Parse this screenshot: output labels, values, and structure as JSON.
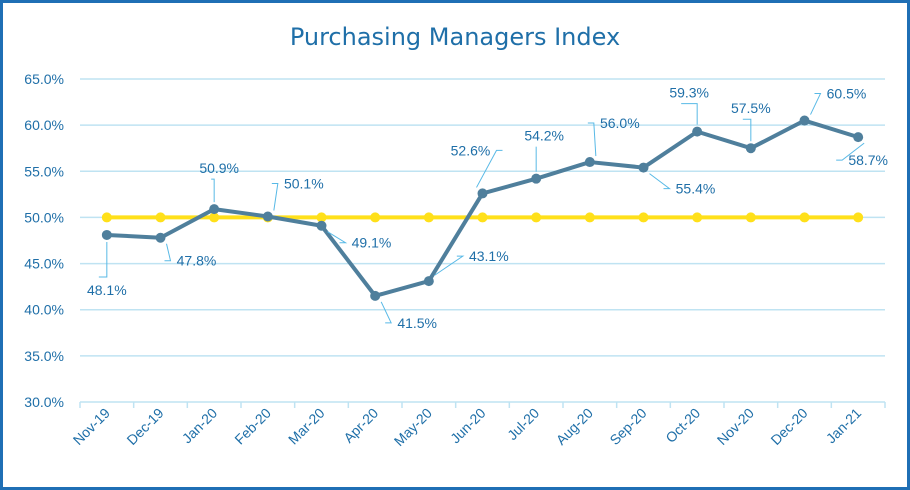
{
  "chart_data": {
    "type": "line",
    "title": "Purchasing Managers Index",
    "xlabel": "",
    "ylabel": "",
    "categories": [
      "Nov-19",
      "Dec-19",
      "Jan-20",
      "Feb-20",
      "Mar-20",
      "Apr-20",
      "May-20",
      "Jun-20",
      "Jul-20",
      "Aug-20",
      "Sep-20",
      "Oct-20",
      "Nov-20",
      "Dec-20",
      "Jan-21"
    ],
    "series": [
      {
        "values": [
          48.1,
          47.8,
          50.9,
          50.1,
          49.1,
          41.5,
          43.1,
          52.6,
          54.2,
          56.0,
          55.4,
          59.3,
          57.5,
          60.5,
          58.7
        ]
      },
      {
        "values": [
          50,
          50,
          50,
          50,
          50,
          50,
          50,
          50,
          50,
          50,
          50,
          50,
          50,
          50,
          50
        ]
      }
    ],
    "data_labels": [
      "48.1%",
      "47.8%",
      "50.9%",
      "50.1%",
      "49.1%",
      "41.5%",
      "43.1%",
      "52.6%",
      "54.2%",
      "56.0%",
      "55.4%",
      "59.3%",
      "57.5%",
      "60.5%",
      "58.7%"
    ],
    "yticks": [
      30,
      35,
      40,
      45,
      50,
      55,
      60,
      65
    ],
    "ytick_labels": [
      "30.0%",
      "35.0%",
      "40.0%",
      "45.0%",
      "50.0%",
      "55.0%",
      "60.0%",
      "65.0%"
    ],
    "ylim": [
      30,
      65
    ],
    "grid": true,
    "legend": "none",
    "colors": {
      "pmi": "#4f7f9c",
      "threshold": "#ffe01a",
      "text": "#1f6fa8",
      "grid": "#bfe3f2",
      "leader": "#58b9e6",
      "border": "#1f6fb5"
    }
  }
}
